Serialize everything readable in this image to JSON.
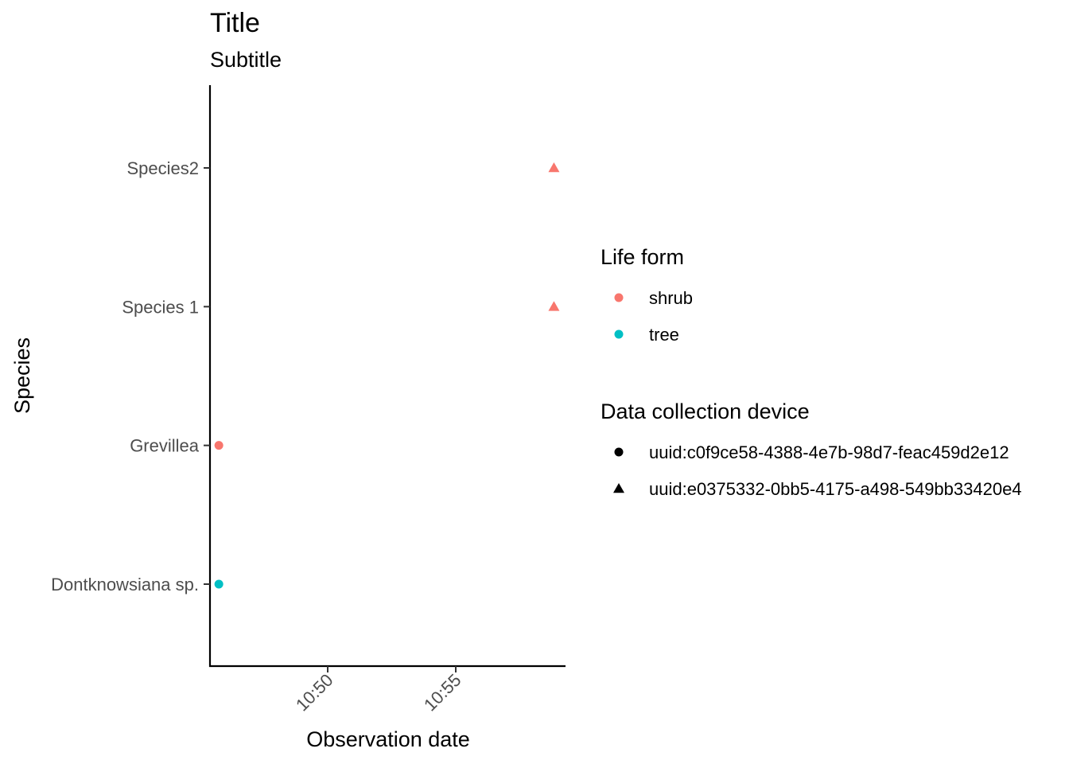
{
  "chart_data": {
    "type": "scatter",
    "title": "Title",
    "subtitle": "Subtitle",
    "xlabel": "Observation date",
    "ylabel": "Species",
    "x_tick_labels": [
      "10:50",
      "10:55"
    ],
    "y_categories": [
      "Dontknowsiana sp.",
      "Grevillea",
      "Species 1",
      "Species2"
    ],
    "points": [
      {
        "x": "10:45:45",
        "y": "Dontknowsiana sp.",
        "life_form": "tree",
        "device": "uuid:c0f9ce58-4388-4e7b-98d7-feac459d2e12"
      },
      {
        "x": "10:45:45",
        "y": "Grevillea",
        "life_form": "shrub",
        "device": "uuid:c0f9ce58-4388-4e7b-98d7-feac459d2e12"
      },
      {
        "x": "10:58:50",
        "y": "Species 1",
        "life_form": "shrub",
        "device": "uuid:e0375332-0bb5-4175-a498-549bb33420e4"
      },
      {
        "x": "10:58:50",
        "y": "Species2",
        "life_form": "shrub",
        "device": "uuid:e0375332-0bb5-4175-a498-549bb33420e4"
      }
    ],
    "legend_color": {
      "title": "Life form",
      "items": [
        {
          "label": "shrub",
          "color": "#F8766D"
        },
        {
          "label": "tree",
          "color": "#00BFC4"
        }
      ]
    },
    "legend_shape": {
      "title": "Data collection device",
      "items": [
        {
          "label": "uuid:c0f9ce58-4388-4e7b-98d7-feac459d2e12",
          "shape": "circle"
        },
        {
          "label": "uuid:e0375332-0bb5-4175-a498-549bb33420e4",
          "shape": "triangle"
        }
      ]
    },
    "legend_placement": "right",
    "grid": false
  }
}
